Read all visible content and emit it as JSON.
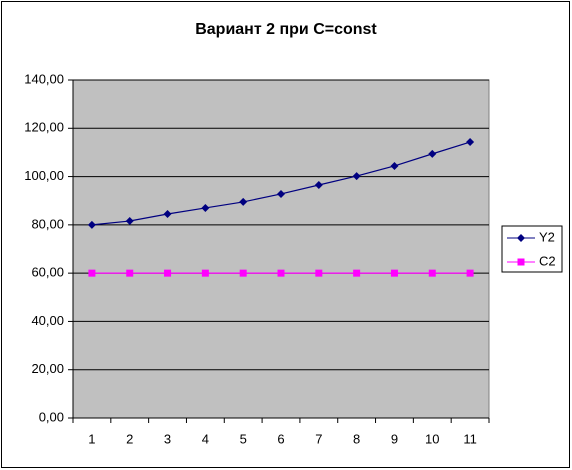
{
  "chart_data": {
    "type": "line",
    "title": "Вариант 2 при C=const",
    "categories": [
      "1",
      "2",
      "3",
      "4",
      "5",
      "6",
      "7",
      "8",
      "9",
      "10",
      "11"
    ],
    "series": [
      {
        "name": "Y2",
        "color": "#000080",
        "marker": "diamond",
        "values": [
          80,
          81.6,
          84.5,
          87,
          89.5,
          92.8,
          96.5,
          100.2,
          104.4,
          109.4,
          114.3
        ]
      },
      {
        "name": "C2",
        "color": "#ff00ff",
        "marker": "square",
        "values": [
          60,
          60,
          60,
          60,
          60,
          60,
          60,
          60,
          60,
          60,
          60
        ]
      }
    ],
    "ylim": [
      0,
      140
    ],
    "yticks": [
      {
        "value": 0,
        "label": "0,00"
      },
      {
        "value": 20,
        "label": "20,00"
      },
      {
        "value": 40,
        "label": "40,00"
      },
      {
        "value": 60,
        "label": "60,00"
      },
      {
        "value": 80,
        "label": "80,00"
      },
      {
        "value": 100,
        "label": "100,00"
      },
      {
        "value": 120,
        "label": "120,00"
      },
      {
        "value": 140,
        "label": "140,00"
      }
    ],
    "grid": true,
    "legend": "right"
  }
}
